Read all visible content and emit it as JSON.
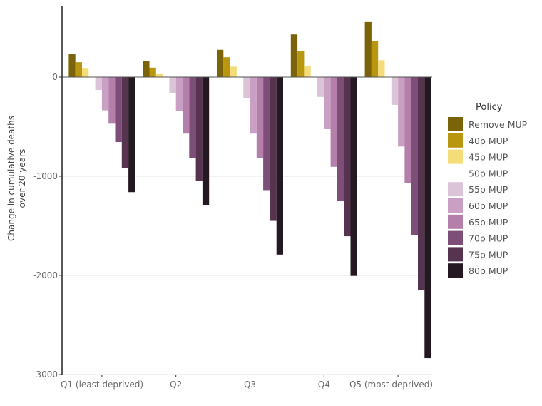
{
  "chart_data": {
    "type": "bar",
    "title": "",
    "xlabel": "",
    "ylabel": "Change in cumulative deaths\nover 20 years",
    "ylabel_lines": [
      "Change in cumulative deaths",
      "over 20 years"
    ],
    "ylim": [
      -3000,
      700
    ],
    "yticks": [
      0,
      -1000,
      -2000,
      -3000
    ],
    "ytick_labels": [
      "0",
      "-1000",
      "-2000",
      "-3000"
    ],
    "grid": true,
    "legend_title": "Policy",
    "legend_position": "right",
    "categories": [
      "Q1 (least deprived)",
      "Q2",
      "Q3",
      "Q4",
      "Q5 (most deprived)"
    ],
    "series": [
      {
        "name": "Remove MUP",
        "color": "#7a6308",
        "values": [
          230,
          165,
          275,
          430,
          555
        ]
      },
      {
        "name": "40p MUP",
        "color": "#b8960f",
        "values": [
          150,
          95,
          200,
          265,
          365
        ]
      },
      {
        "name": "45p MUP",
        "color": "#f4dc78",
        "values": [
          85,
          30,
          105,
          115,
          170
        ]
      },
      {
        "name": "50p MUP",
        "color": "#ffffff",
        "values": [
          0,
          0,
          0,
          0,
          0
        ]
      },
      {
        "name": "55p MUP",
        "color": "#dcc4d8",
        "values": [
          -130,
          -165,
          -215,
          -200,
          -280
        ]
      },
      {
        "name": "60p MUP",
        "color": "#c9a0c4",
        "values": [
          -335,
          -345,
          -570,
          -525,
          -700
        ]
      },
      {
        "name": "65p MUP",
        "color": "#b47fab",
        "values": [
          -470,
          -570,
          -820,
          -905,
          -1065
        ]
      },
      {
        "name": "70p MUP",
        "color": "#7d4f78",
        "values": [
          -655,
          -815,
          -1140,
          -1245,
          -1590
        ]
      },
      {
        "name": "75p MUP",
        "color": "#56344f",
        "values": [
          -920,
          -1050,
          -1450,
          -1605,
          -2150
        ]
      },
      {
        "name": "80p MUP",
        "color": "#241922",
        "values": [
          -1160,
          -1295,
          -1790,
          -2005,
          -2835
        ]
      }
    ]
  }
}
